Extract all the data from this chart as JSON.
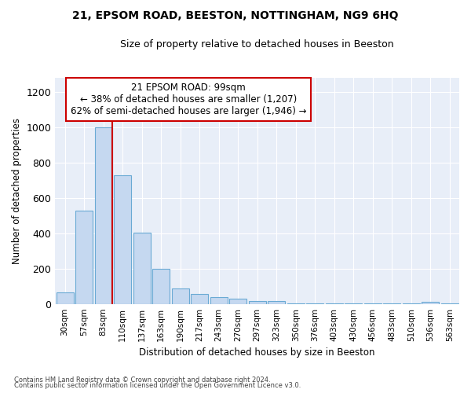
{
  "title1": "21, EPSOM ROAD, BEESTON, NOTTINGHAM, NG9 6HQ",
  "title2": "Size of property relative to detached houses in Beeston",
  "xlabel": "Distribution of detached houses by size in Beeston",
  "ylabel": "Number of detached properties",
  "categories": [
    "30sqm",
    "57sqm",
    "83sqm",
    "110sqm",
    "137sqm",
    "163sqm",
    "190sqm",
    "217sqm",
    "243sqm",
    "270sqm",
    "297sqm",
    "323sqm",
    "350sqm",
    "376sqm",
    "403sqm",
    "430sqm",
    "456sqm",
    "483sqm",
    "510sqm",
    "536sqm",
    "563sqm"
  ],
  "values": [
    65,
    530,
    1000,
    730,
    405,
    200,
    88,
    55,
    38,
    30,
    15,
    15,
    5,
    5,
    2,
    2,
    1,
    1,
    1,
    10,
    5
  ],
  "bar_color": "#c5d8f0",
  "bar_edge_color": "#6aaad4",
  "vline_color": "#cc0000",
  "annotation_text": "21 EPSOM ROAD: 99sqm\n← 38% of detached houses are smaller (1,207)\n62% of semi-detached houses are larger (1,946) →",
  "annotation_box_facecolor": "#ffffff",
  "annotation_box_edgecolor": "#cc0000",
  "ylim": [
    0,
    1280
  ],
  "yticks": [
    0,
    200,
    400,
    600,
    800,
    1000,
    1200
  ],
  "plot_bg_color": "#e8eef8",
  "footer1": "Contains HM Land Registry data © Crown copyright and database right 2024.",
  "footer2": "Contains public sector information licensed under the Open Government Licence v3.0."
}
